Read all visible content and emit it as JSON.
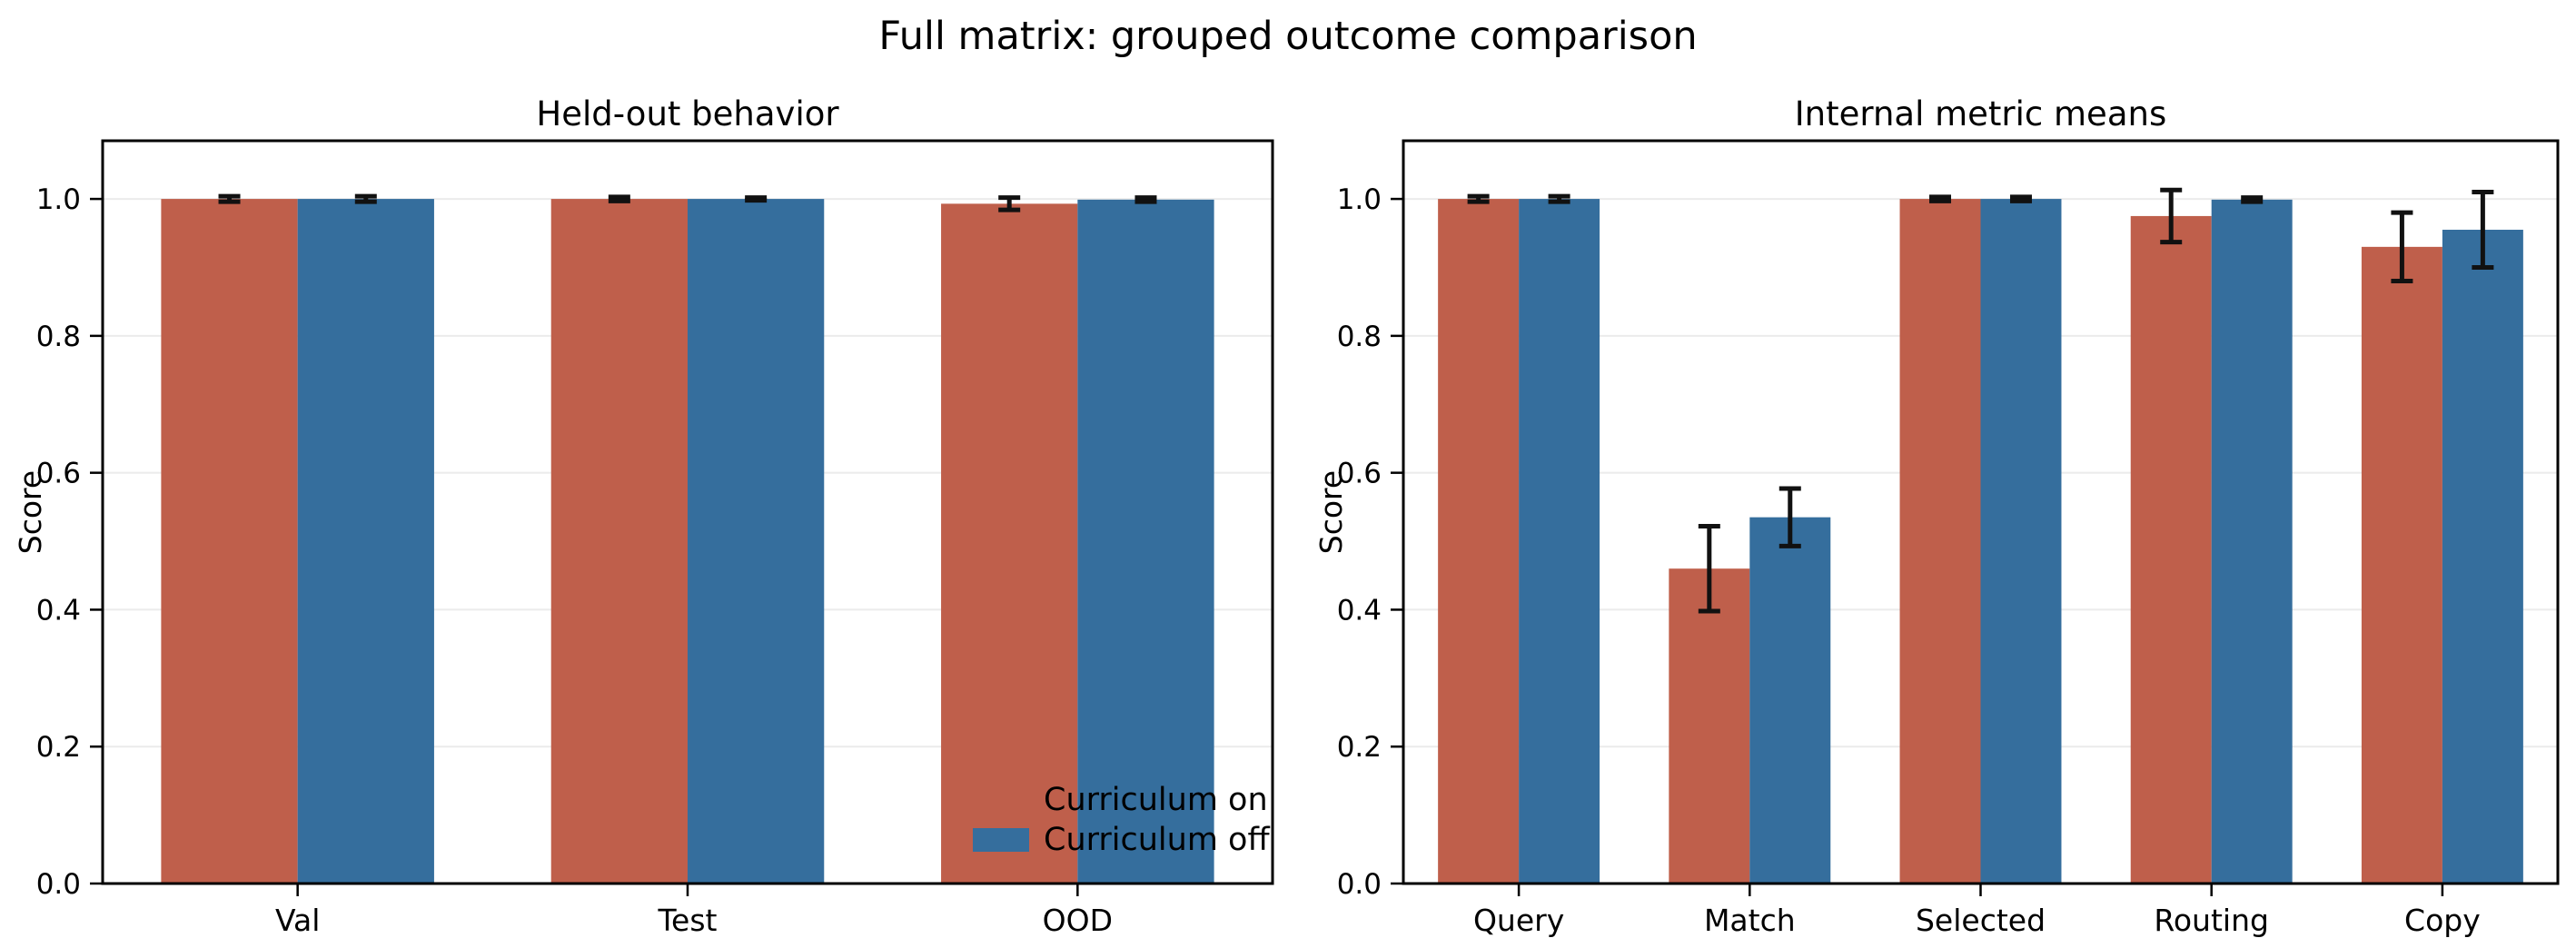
{
  "figure": {
    "title": "Full matrix: grouped outcome comparison",
    "background": "#ffffff"
  },
  "legend": {
    "position": "lower right of left subplot",
    "frame": false,
    "items": [
      {
        "label": "Curriculum on",
        "color": "#BF5F4B"
      },
      {
        "label": "Curriculum off",
        "color": "#356E9D"
      }
    ]
  },
  "style": {
    "bar_on_color": "#BF5F4B",
    "bar_off_color": "#356E9D",
    "grid_color": "#EBEBEB",
    "spine_color": "#000000",
    "errorbar_color": "#111111"
  },
  "chart_data": [
    {
      "type": "bar",
      "title": "Held-out behavior",
      "xlabel": "",
      "ylabel": "Score",
      "categories": [
        "Val",
        "Test",
        "OOD"
      ],
      "series": [
        {
          "name": "Curriculum on",
          "color": "#BF5F4B",
          "values": [
            1.0,
            1.0,
            0.993
          ],
          "errors": [
            0.004,
            0.003,
            0.009
          ]
        },
        {
          "name": "Curriculum off",
          "color": "#356E9D",
          "values": [
            1.0,
            1.0,
            0.999
          ],
          "errors": [
            0.004,
            0.002,
            0.003
          ]
        }
      ],
      "ylim": [
        0.0,
        1.085
      ],
      "yticks": [
        "0.0",
        "0.2",
        "0.4",
        "0.6",
        "0.8",
        "1.0"
      ],
      "grid": true,
      "legend": true,
      "legend_position": "lower right"
    },
    {
      "type": "bar",
      "title": "Internal metric means",
      "xlabel": "",
      "ylabel": "Score",
      "categories": [
        "Query",
        "Match",
        "Selected",
        "Routing",
        "Copy"
      ],
      "series": [
        {
          "name": "Curriculum on",
          "color": "#BF5F4B",
          "values": [
            1.0,
            0.46,
            1.0,
            0.975,
            0.93
          ],
          "errors": [
            0.004,
            0.062,
            0.003,
            0.038,
            0.05
          ]
        },
        {
          "name": "Curriculum off",
          "color": "#356E9D",
          "values": [
            1.0,
            0.535,
            1.0,
            0.999,
            0.955
          ],
          "errors": [
            0.004,
            0.042,
            0.003,
            0.003,
            0.055
          ]
        }
      ],
      "ylim": [
        0.0,
        1.085
      ],
      "yticks": [
        "0.0",
        "0.2",
        "0.4",
        "0.6",
        "0.8",
        "1.0"
      ],
      "grid": true,
      "legend": false
    }
  ]
}
